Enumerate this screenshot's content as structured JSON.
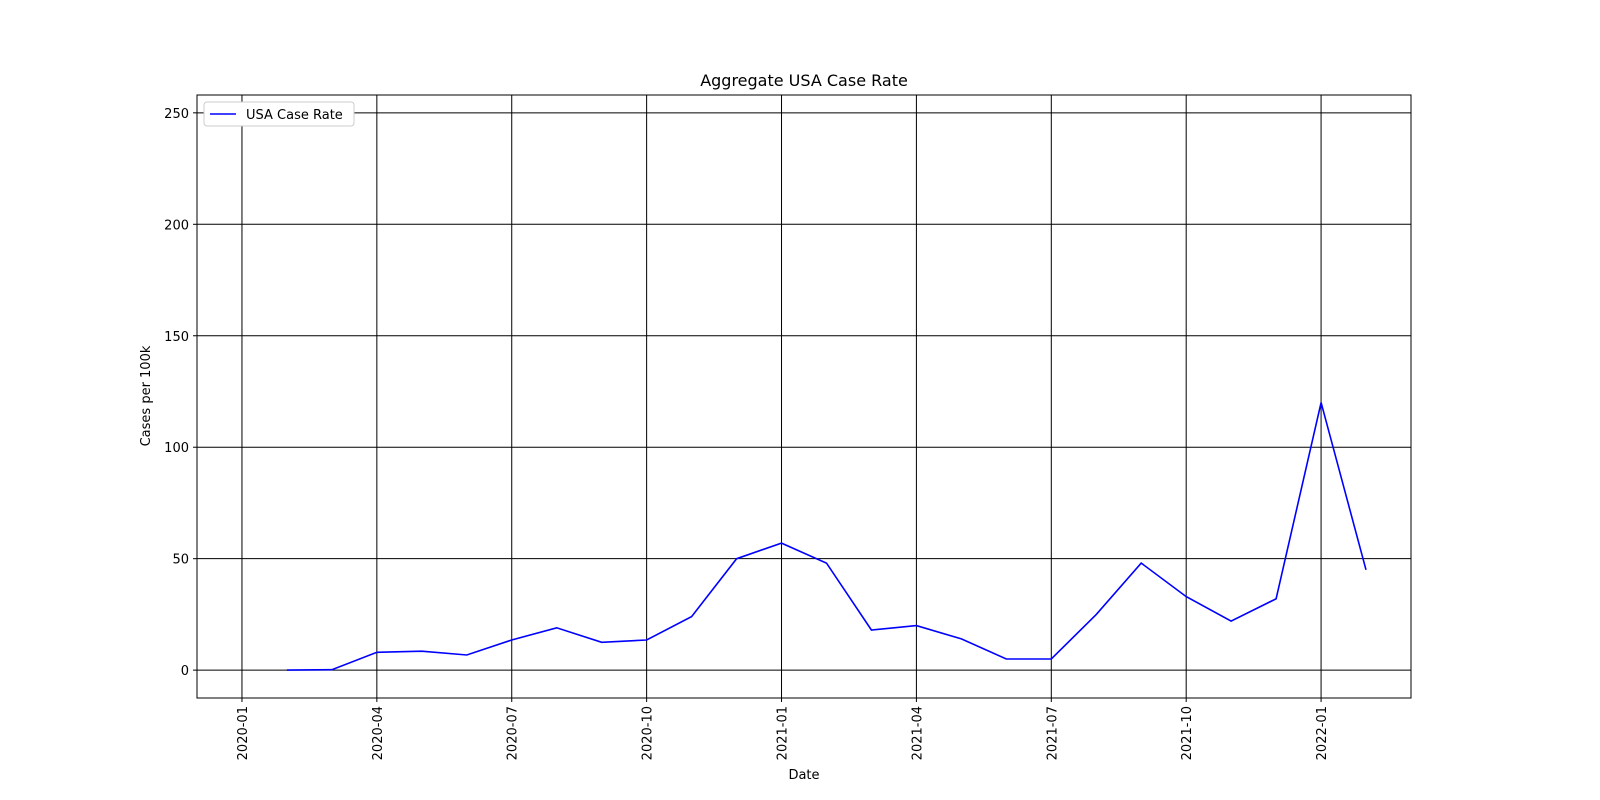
{
  "chart_data": {
    "type": "line",
    "title": "Aggregate USA Case Rate",
    "x_label": "Date",
    "y_label": "Cases per 100k",
    "x": [
      "2020-02",
      "2020-03",
      "2020-04",
      "2020-05",
      "2020-06",
      "2020-07",
      "2020-08",
      "2020-09",
      "2020-10",
      "2020-11",
      "2020-12",
      "2021-01",
      "2021-02",
      "2021-03",
      "2021-04",
      "2021-05",
      "2021-06",
      "2021-07",
      "2021-08",
      "2021-09",
      "2021-10",
      "2021-11",
      "2021-12",
      "2022-01",
      "2022-02"
    ],
    "series": [
      {
        "name": "USA Case Rate",
        "color": "#0000ff",
        "values": [
          0,
          0.2,
          8,
          8.5,
          6.8,
          13.5,
          19,
          12.5,
          13.5,
          24,
          50,
          57,
          48,
          18,
          20,
          14,
          5,
          5,
          25,
          48,
          33,
          22,
          32,
          120,
          45
        ]
      }
    ],
    "xlim": [
      "2019-12",
      "2022-03"
    ],
    "xticks": [
      "2020-01",
      "2020-04",
      "2020-07",
      "2020-10",
      "2021-01",
      "2021-04",
      "2021-07",
      "2021-10",
      "2022-01"
    ],
    "ylim": [
      -12.5,
      258
    ],
    "yticks": [
      0,
      50,
      100,
      150,
      200,
      250
    ],
    "grid": true,
    "legend": "upper left"
  }
}
